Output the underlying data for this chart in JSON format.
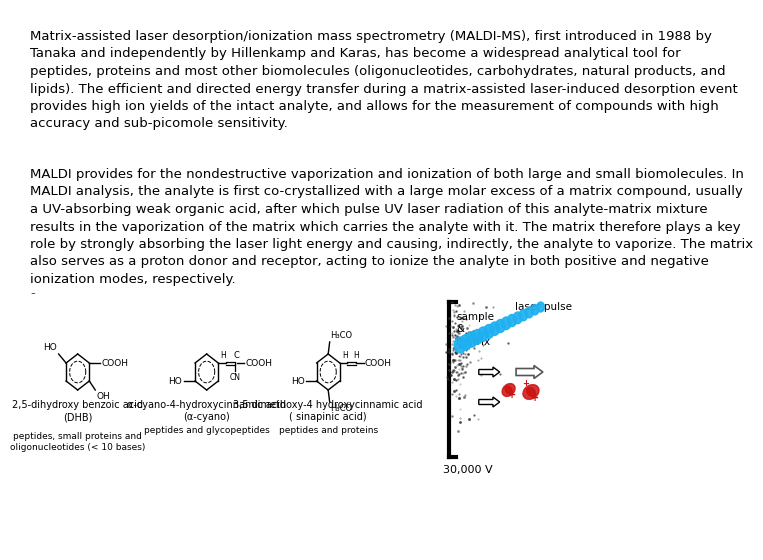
{
  "bg_color": "#ffffff",
  "text_color": "#000000",
  "blue_dash_color": "#4444aa",
  "paragraph1": "Matrix-assisted laser desorption/ionization mass spectrometry (MALDI-MS), first introduced in 1988 by\nTanaka and independently by Hillenkamp and Karas, has become a widespread analytical tool for\npeptides, proteins and most other biomolecules (oligonucleotides, carbohydrates, natural products, and\nlipids). The efficient and directed energy transfer during a matrix-assisted laser-induced desorption event\nprovides high ion yields of the intact analyte, and allows for the measurement of compounds with high\naccuracy and sub-picomole sensitivity.",
  "paragraph2": "MALDI provides for the nondestructive vaporization and ionization of both large and small biomolecules. In\nMALDI analysis, the analyte is first co-crystallized with a large molar excess of a matrix compound, usually\na UV-absorbing weak organic acid, after which pulse UV laser radiation of this analyte-matrix mixture\nresults in the vaporization of the matrix which carries the analyte with it. The matrix therefore plays a key\nrole by strongly absorbing the laser light energy and causing, indirectly, the analyte to vaporize. The matrix\nalso serves as a proton donor and receptor, acting to ionize the analyte in both positive and negative\nionization modes, respectively.",
  "dash_char": "-",
  "chem1_name": "2,5-dihydroxy benzoic acid",
  "chem1_abbr": "(DHB)",
  "chem1_use": "peptides, small proteins and\noligonucleotides (< 10 bases)",
  "chem2_name": "α-cyano-4-hydroxycinnamic acid",
  "chem2_abbr": "(α-cyano)",
  "chem2_use": "peptides and glycopeptides",
  "chem3_name": "3,5 dimethoxy-4 hydroxycinnamic acid",
  "chem3_abbr": "( sinapinic acid)",
  "chem3_use": "peptides and proteins",
  "voltage_label": "30,000 V",
  "sample_label": "sample\n&\nmatrix",
  "laser_label": "laser pulse",
  "font_size_body": 9.5,
  "font_size_chem": 7.5,
  "font_size_small": 7.0
}
